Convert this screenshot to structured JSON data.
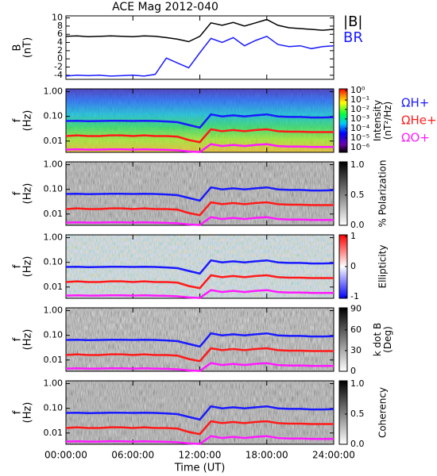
{
  "chart_data": [
    {
      "type": "line",
      "title": "ACE Mag 2012-040",
      "ylabel": [
        "B",
        "(nT)"
      ],
      "x": [
        0,
        1,
        2,
        3,
        4,
        5,
        6,
        7,
        8,
        9,
        10,
        11,
        12,
        13,
        14,
        15,
        16,
        17,
        18,
        19,
        20,
        21,
        22,
        23,
        24
      ],
      "ylim": [
        -5,
        10.5
      ],
      "yticks": [
        10,
        8,
        6,
        4,
        2,
        0,
        -2,
        -4
      ],
      "series": [
        {
          "name": "|B|",
          "color": "#000000",
          "values": [
            5.5,
            5.6,
            5.4,
            5.5,
            5.6,
            5.5,
            5.4,
            5.6,
            5.5,
            5.2,
            4.8,
            4.2,
            5.5,
            8.8,
            8.2,
            8.9,
            8.0,
            8.8,
            9.6,
            8.2,
            7.6,
            7.4,
            7.2,
            7.0,
            7.2
          ]
        },
        {
          "name": "BR",
          "color": "#1a1aff",
          "values": [
            -4.2,
            -4.0,
            -4.1,
            -4.0,
            -4.2,
            -4.1,
            -4.0,
            -4.2,
            -3.8,
            0.2,
            -1.0,
            -2.2,
            1.5,
            5.0,
            4.0,
            5.2,
            3.2,
            4.5,
            5.5,
            3.5,
            3.0,
            3.2,
            2.5,
            3.0,
            3.2
          ]
        }
      ]
    },
    {
      "type": "spectrogram",
      "ylabel": [
        "f",
        "(Hz)"
      ],
      "ylog": true,
      "ylim": [
        0.0035,
        1.3
      ],
      "yticks": [
        {
          "value": 1,
          "label": "1.00"
        },
        {
          "value": 0.1,
          "label": "0.10"
        },
        {
          "value": 0.01,
          "label": "0.01"
        }
      ],
      "colormap": "rainbow",
      "clabel": [
        "Intensity",
        "(nT²/Hz)"
      ],
      "clog": true,
      "clim": [
        3e-07,
        1.5
      ],
      "cticks": [
        {
          "value": 1,
          "label": "10⁰"
        },
        {
          "value": 0.1,
          "label": "10⁻¹"
        },
        {
          "value": 0.01,
          "label": "10⁻²"
        },
        {
          "value": 0.001,
          "label": "10⁻³"
        },
        {
          "value": 0.0001,
          "label": "10⁻⁴"
        },
        {
          "value": 1e-05,
          "label": "10⁻⁵"
        },
        {
          "value": 1e-06,
          "label": "10⁻⁶"
        }
      ],
      "series": [
        {
          "name": "ΩH+",
          "color": "#1a1aff",
          "values": [
            0.065,
            0.066,
            0.064,
            0.065,
            0.066,
            0.066,
            0.065,
            0.066,
            0.065,
            0.062,
            0.058,
            0.045,
            0.035,
            0.12,
            0.1,
            0.11,
            0.1,
            0.11,
            0.12,
            0.1,
            0.095,
            0.095,
            0.09,
            0.09,
            0.092
          ]
        },
        {
          "name": "ΩHe+",
          "color": "#ff1a1a",
          "values": [
            0.016,
            0.017,
            0.016,
            0.016,
            0.017,
            0.017,
            0.016,
            0.017,
            0.016,
            0.016,
            0.015,
            0.011,
            0.009,
            0.03,
            0.025,
            0.028,
            0.025,
            0.028,
            0.03,
            0.025,
            0.024,
            0.024,
            0.023,
            0.023,
            0.023
          ]
        },
        {
          "name": "ΩO+",
          "color": "#ff1aff",
          "values": [
            0.0045,
            0.0046,
            0.0045,
            0.0045,
            0.0046,
            0.0046,
            0.0045,
            0.0046,
            0.0045,
            0.0044,
            0.0042,
            0.0038,
            0.0036,
            0.0075,
            0.0063,
            0.007,
            0.0063,
            0.007,
            0.0075,
            0.0063,
            0.006,
            0.006,
            0.0058,
            0.0058,
            0.0058
          ]
        }
      ]
    },
    {
      "type": "spectrogram",
      "ylabel": [
        "f",
        "(Hz)"
      ],
      "ylog": true,
      "ylim": [
        0.0035,
        1.3
      ],
      "yticks": [
        {
          "value": 1,
          "label": "1.00"
        },
        {
          "value": 0.1,
          "label": "0.10"
        },
        {
          "value": 0.01,
          "label": "0.01"
        }
      ],
      "colormap": "gray",
      "clabel": [
        "% Polarization"
      ],
      "clim": [
        0,
        1.05
      ],
      "cticks": [
        {
          "value": 1,
          "label": "1.0"
        },
        {
          "value": 0.5,
          "label": "0.5"
        },
        {
          "value": 0,
          "label": "0.0"
        }
      ]
    },
    {
      "type": "spectrogram",
      "ylabel": [
        "f",
        "(Hz)"
      ],
      "ylog": true,
      "ylim": [
        0.0035,
        1.3
      ],
      "yticks": [
        {
          "value": 1,
          "label": "1.00"
        },
        {
          "value": 0.1,
          "label": "0.10"
        },
        {
          "value": 0.01,
          "label": "0.01"
        }
      ],
      "colormap": "bwr",
      "clabel": [
        "Ellipticity"
      ],
      "clim": [
        -1.05,
        1.05
      ],
      "cticks": [
        1,
        0,
        -1
      ]
    },
    {
      "type": "spectrogram",
      "ylabel": [
        "f",
        "(Hz)"
      ],
      "ylog": true,
      "ylim": [
        0.0035,
        1.3
      ],
      "yticks": [
        {
          "value": 1,
          "label": "1.00"
        },
        {
          "value": 0.1,
          "label": "0.10"
        },
        {
          "value": 0.01,
          "label": "0.01"
        }
      ],
      "colormap": "gray",
      "clabel": [
        "k dot B",
        "(Deg)"
      ],
      "clim": [
        0,
        92
      ],
      "cticks": [
        90,
        60,
        30,
        0
      ]
    },
    {
      "type": "spectrogram",
      "ylabel": [
        "f",
        "(Hz)"
      ],
      "ylog": true,
      "ylim": [
        0.0035,
        1.3
      ],
      "yticks": [
        {
          "value": 1,
          "label": "1.00"
        },
        {
          "value": 0.1,
          "label": "0.10"
        },
        {
          "value": 0.01,
          "label": "0.01"
        }
      ],
      "colormap": "gray",
      "clabel": [
        "Coherency"
      ],
      "clim": [
        0,
        1.05
      ],
      "cticks": [
        {
          "value": 1,
          "label": "1.0"
        },
        {
          "value": 0.5,
          "label": "0.5"
        },
        {
          "value": 0,
          "label": "0.0"
        }
      ],
      "xlabel": "Time (UT)",
      "xlim": [
        0,
        24
      ],
      "xticks": [
        {
          "value": 0,
          "label": "00:00:00"
        },
        {
          "value": 6,
          "label": "06:00:00"
        },
        {
          "value": 12,
          "label": "12:00:00"
        },
        {
          "value": 18,
          "label": "18:00:00"
        },
        {
          "value": 24,
          "label": "24:00:00"
        }
      ]
    }
  ]
}
